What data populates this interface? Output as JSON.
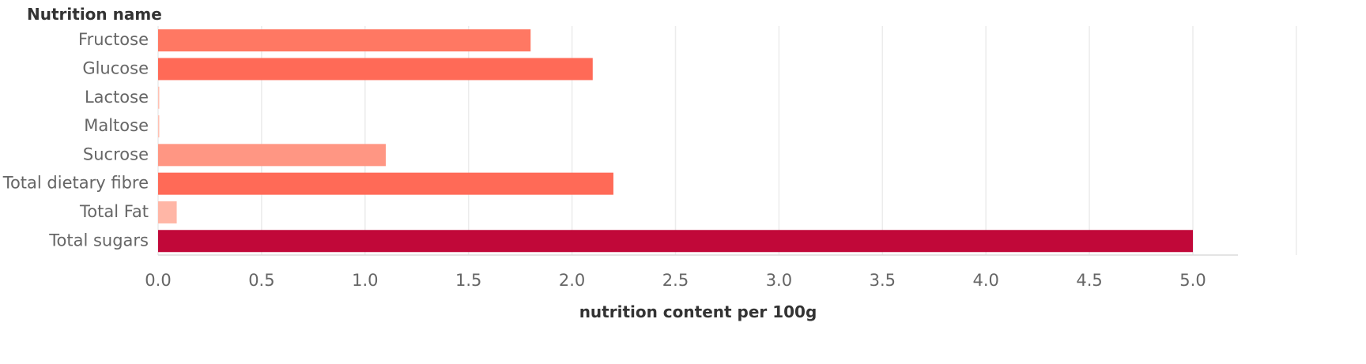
{
  "chart_data": {
    "type": "bar",
    "orientation": "horizontal",
    "row_header": "Nutrition name",
    "xlabel": "nutrition content per 100g",
    "categories": [
      "Fructose",
      "Glucose",
      "Lactose",
      "Maltose",
      "Sucrose",
      "Total dietary fibre",
      "Total Fat",
      "Total sugars"
    ],
    "values": [
      1.8,
      2.1,
      0.0,
      0.0,
      1.1,
      2.2,
      0.09,
      5.0
    ],
    "colors": [
      "#ff7863",
      "#ff6a57",
      "#ffc1b3",
      "#ffc1b3",
      "#ff9683",
      "#ff6a57",
      "#ffb6a6",
      "#c10839"
    ],
    "xlim": [
      0,
      5.0
    ],
    "xticks": [
      0.0,
      0.5,
      1.0,
      1.5,
      2.0,
      2.5,
      3.0,
      3.5,
      4.0,
      4.5,
      5.0
    ],
    "xtick_labels": [
      "0.0",
      "0.5",
      "1.0",
      "1.5",
      "2.0",
      "2.5",
      "3.0",
      "3.5",
      "4.0",
      "4.5",
      "5.0"
    ],
    "grid": "vertical",
    "gridline_color": "#ececec"
  }
}
